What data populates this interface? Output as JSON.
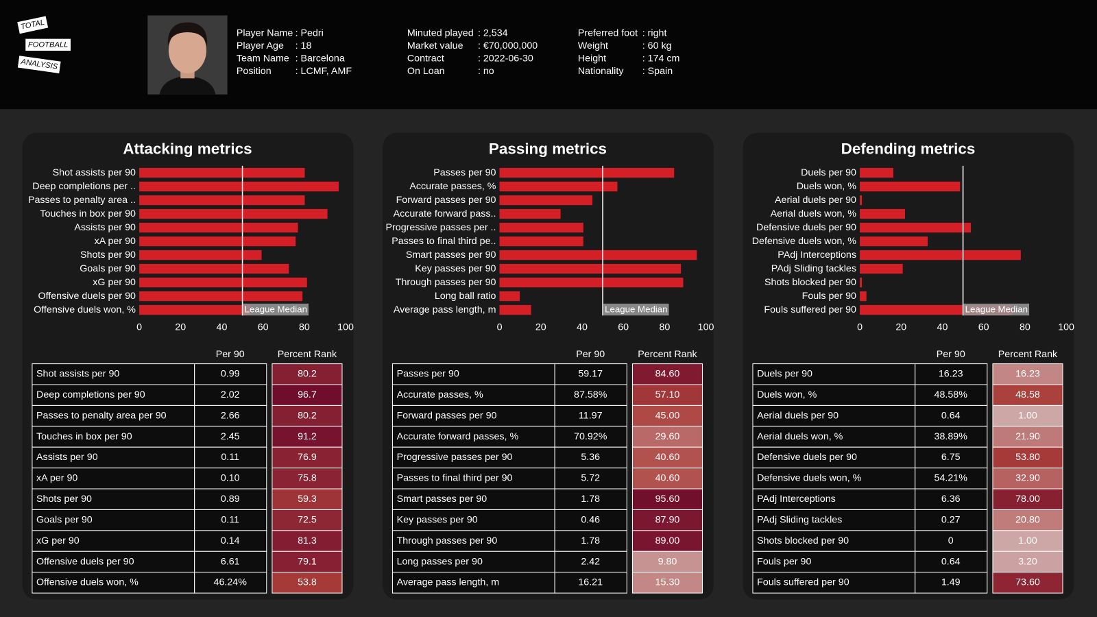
{
  "header": {
    "logo": [
      "TOTAL",
      "FOOTBALL",
      "ANALYSIS"
    ],
    "info": [
      [
        {
          "label": "Player Name",
          "value": ": Pedri"
        },
        {
          "label": "Player Age",
          "value": ": 18"
        },
        {
          "label": "Team Name",
          "value": ": Barcelona"
        },
        {
          "label": "Position",
          "value": ": LCMF, AMF"
        }
      ],
      [
        {
          "label": "Minuted played",
          "value": ": 2,534"
        },
        {
          "label": "Market value",
          "value": ": €70,000,000"
        },
        {
          "label": "Contract",
          "value": ": 2022-06-30"
        },
        {
          "label": "On Loan",
          "value": ": no"
        }
      ],
      [
        {
          "label": "Preferred foot",
          "value": ": right"
        },
        {
          "label": "Weight",
          "value": ": 60 kg"
        },
        {
          "label": "Height",
          "value": ": 174 cm"
        },
        {
          "label": "Nationality",
          "value": ": Spain"
        }
      ]
    ]
  },
  "chart_data": [
    {
      "type": "bar",
      "title": "Attacking metrics",
      "categories": [
        "Shot assists per 90",
        "Deep completions per ..",
        "Passes to penalty area ..",
        "Touches in box per 90",
        "Assists per 90",
        "xA per 90",
        "Shots per 90",
        "Goals per 90",
        "xG per 90",
        "Offensive duels per 90",
        "Offensive duels won, %"
      ],
      "values": [
        80.2,
        96.7,
        80.2,
        91.2,
        76.9,
        75.8,
        59.3,
        72.5,
        81.3,
        79.1,
        53.8
      ],
      "color": "#d41f26",
      "xlim": [
        0,
        100
      ],
      "xticks": [
        0,
        20,
        40,
        60,
        80,
        100
      ],
      "median": 50,
      "median_label": "League Median"
    },
    {
      "type": "bar",
      "title": "Passing metrics",
      "categories": [
        "Passes per 90",
        "Accurate passes, %",
        "Forward passes per 90",
        "Accurate forward pass..",
        "Progressive passes per ..",
        "Passes to final third pe..",
        "Smart passes per 90",
        "Key passes per 90",
        "Through passes per 90",
        "Long ball ratio",
        "Average pass length, m"
      ],
      "values": [
        84.6,
        57.1,
        45,
        29.6,
        40.6,
        40.6,
        95.6,
        87.9,
        89,
        9.8,
        15.3
      ],
      "color": "#d41f26",
      "xlim": [
        0,
        100
      ],
      "xticks": [
        0,
        20,
        40,
        60,
        80,
        100
      ],
      "median": 50,
      "median_label": "League Median"
    },
    {
      "type": "bar",
      "title": "Defending metrics",
      "categories": [
        "Duels per 90",
        "Duels won, %",
        "Aerial duels per 90",
        "Aerial duels won, %",
        "Defensive duels per 90",
        "Defensive duels won, %",
        "PAdj Interceptions",
        "PAdj Sliding tackles",
        "Shots blocked per 90",
        "Fouls per 90",
        "Fouls suffered per 90"
      ],
      "values": [
        16.23,
        48.58,
        1,
        21.9,
        53.8,
        32.9,
        78,
        20.8,
        1,
        3.2,
        73.6
      ],
      "color": "#d41f26",
      "xlim": [
        0,
        100
      ],
      "xticks": [
        0,
        20,
        40,
        60,
        80,
        100
      ],
      "median": 50,
      "median_label": "League Median"
    }
  ],
  "tables": [
    {
      "columns": [
        "Per 90",
        "Percent Rank"
      ],
      "rows": [
        [
          "Shot assists per 90",
          "0.99",
          "80.2"
        ],
        [
          "Deep completions per 90",
          "2.02",
          "96.7"
        ],
        [
          "Passes to penalty area per 90",
          "2.66",
          "80.2"
        ],
        [
          "Touches in box per 90",
          "2.45",
          "91.2"
        ],
        [
          "Assists per 90",
          "0.11",
          "76.9"
        ],
        [
          "xA per 90",
          "0.10",
          "75.8"
        ],
        [
          "Shots per 90",
          "0.89",
          "59.3"
        ],
        [
          "Goals per 90",
          "0.11",
          "72.5"
        ],
        [
          "xG per 90",
          "0.14",
          "81.3"
        ],
        [
          "Offensive duels per 90",
          "6.61",
          "79.1"
        ],
        [
          "Offensive duels won, %",
          "46.24%",
          "53.8"
        ]
      ]
    },
    {
      "columns": [
        "Per 90",
        "Percent Rank"
      ],
      "rows": [
        [
          "Passes per 90",
          "59.17",
          "84.60"
        ],
        [
          "Accurate passes, %",
          "87.58%",
          "57.10"
        ],
        [
          "Forward passes per 90",
          "11.97",
          "45.00"
        ],
        [
          "Accurate forward passes, %",
          "70.92%",
          "29.60"
        ],
        [
          "Progressive passes per 90",
          "5.36",
          "40.60"
        ],
        [
          "Passes to final third per 90",
          "5.72",
          "40.60"
        ],
        [
          "Smart passes per 90",
          "1.78",
          "95.60"
        ],
        [
          "Key passes per 90",
          "0.46",
          "87.90"
        ],
        [
          "Through passes per 90",
          "1.78",
          "89.00"
        ],
        [
          "Long passes per 90",
          "2.42",
          "9.80"
        ],
        [
          "Average pass length, m",
          "16.21",
          "15.30"
        ]
      ]
    },
    {
      "columns": [
        "Per 90",
        "Percent Rank"
      ],
      "rows": [
        [
          "Duels per 90",
          "16.23",
          "16.23"
        ],
        [
          "Duels won, %",
          "48.58%",
          "48.58"
        ],
        [
          "Aerial duels per 90",
          "0.64",
          "1.00"
        ],
        [
          "Aerial duels won, %",
          "38.89%",
          "21.90"
        ],
        [
          "Defensive duels per 90",
          "6.75",
          "53.80"
        ],
        [
          "Defensive duels won, %",
          "54.21%",
          "32.90"
        ],
        [
          "PAdj Interceptions",
          "6.36",
          "78.00"
        ],
        [
          "PAdj Sliding tackles",
          "0.27",
          "20.80"
        ],
        [
          "Shots blocked per 90",
          "0",
          "1.00"
        ],
        [
          "Fouls per 90",
          "0.64",
          "3.20"
        ],
        [
          "Fouls suffered per 90",
          "1.49",
          "73.60"
        ]
      ]
    }
  ]
}
